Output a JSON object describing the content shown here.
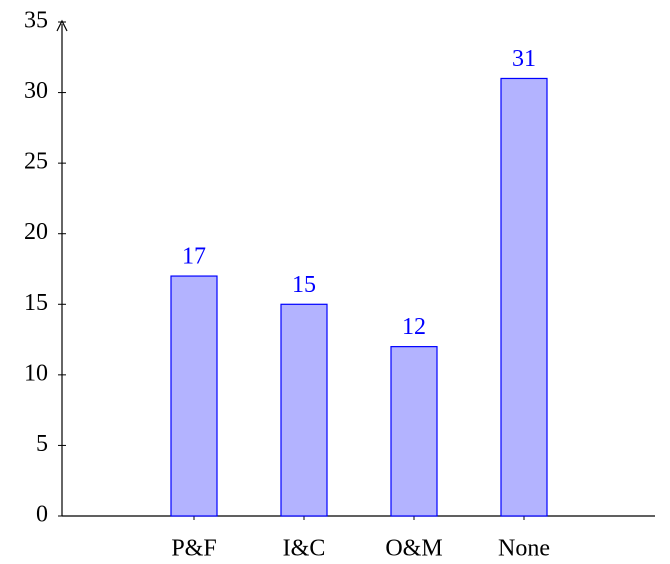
{
  "chart_data": {
    "type": "bar",
    "categories": [
      "P&F",
      "I&C",
      "O&M",
      "None"
    ],
    "values": [
      17,
      15,
      12,
      31
    ],
    "color": "#b3b3ff",
    "edge_color": "#0000ff",
    "label_color": "#0000ff",
    "ylim": [
      0,
      35
    ],
    "yticks": [
      0,
      5,
      10,
      15,
      20,
      25,
      30,
      35
    ]
  }
}
